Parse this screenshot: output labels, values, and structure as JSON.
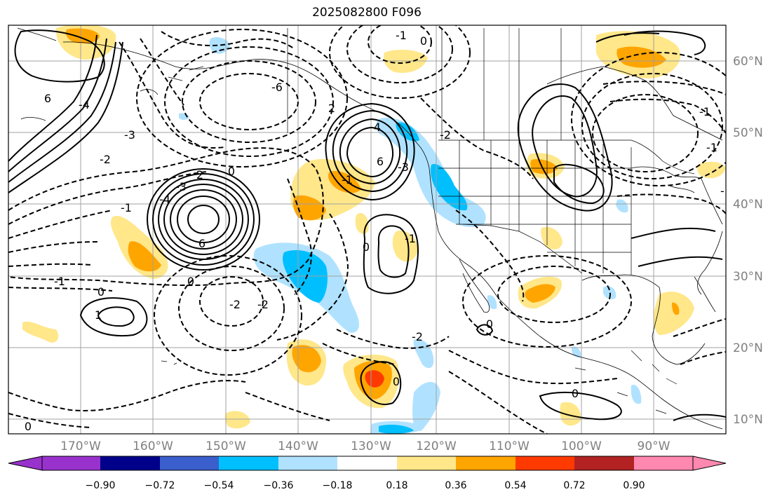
{
  "title": "2025082800 F096",
  "map": {
    "lat_labels": [
      "60°N",
      "50°N",
      "40°N",
      "30°N",
      "20°N",
      "10°N"
    ],
    "lon_labels": [
      "170°W",
      "160°W",
      "150°W",
      "140°W",
      "130°W",
      "120°W",
      "110°W",
      "100°W",
      "90°W"
    ],
    "contour_labels": [
      {
        "text": "-1"
      },
      {
        "text": "0"
      },
      {
        "text": "6"
      },
      {
        "text": "-4"
      },
      {
        "text": "-3"
      },
      {
        "text": "-2"
      },
      {
        "text": "-6"
      },
      {
        "text": "6"
      },
      {
        "text": "-3"
      },
      {
        "text": "-4"
      },
      {
        "text": "0"
      },
      {
        "text": "-1"
      },
      {
        "text": "2"
      },
      {
        "text": "-2"
      },
      {
        "text": "-4"
      },
      {
        "text": "6"
      },
      {
        "text": "0"
      },
      {
        "text": "-1"
      },
      {
        "text": "0"
      },
      {
        "text": "-2"
      },
      {
        "text": "2"
      },
      {
        "text": "1"
      },
      {
        "text": "0"
      },
      {
        "text": "-1"
      },
      {
        "text": "-1"
      },
      {
        "text": "0"
      },
      {
        "text": "0"
      },
      {
        "text": "-3"
      },
      {
        "text": "-1"
      },
      {
        "text": "-1"
      },
      {
        "text": "-2"
      },
      {
        "text": "0"
      },
      {
        "text": "-2"
      },
      {
        "text": "-1"
      },
      {
        "text": "0"
      }
    ]
  },
  "colorbar": {
    "colors": [
      "#9932cc",
      "#00008b",
      "#3a5fcd",
      "#00bfff",
      "#b0e2ff",
      "#ffffff",
      "#ffe78a",
      "#ffa500",
      "#ff3a00",
      "#b22222",
      "#ff88b0"
    ],
    "tick_labels": [
      "−0.90",
      "−0.72",
      "−0.54",
      "−0.36",
      "−0.18",
      "0.18",
      "0.36",
      "0.54",
      "0.72",
      "0.90"
    ]
  }
}
